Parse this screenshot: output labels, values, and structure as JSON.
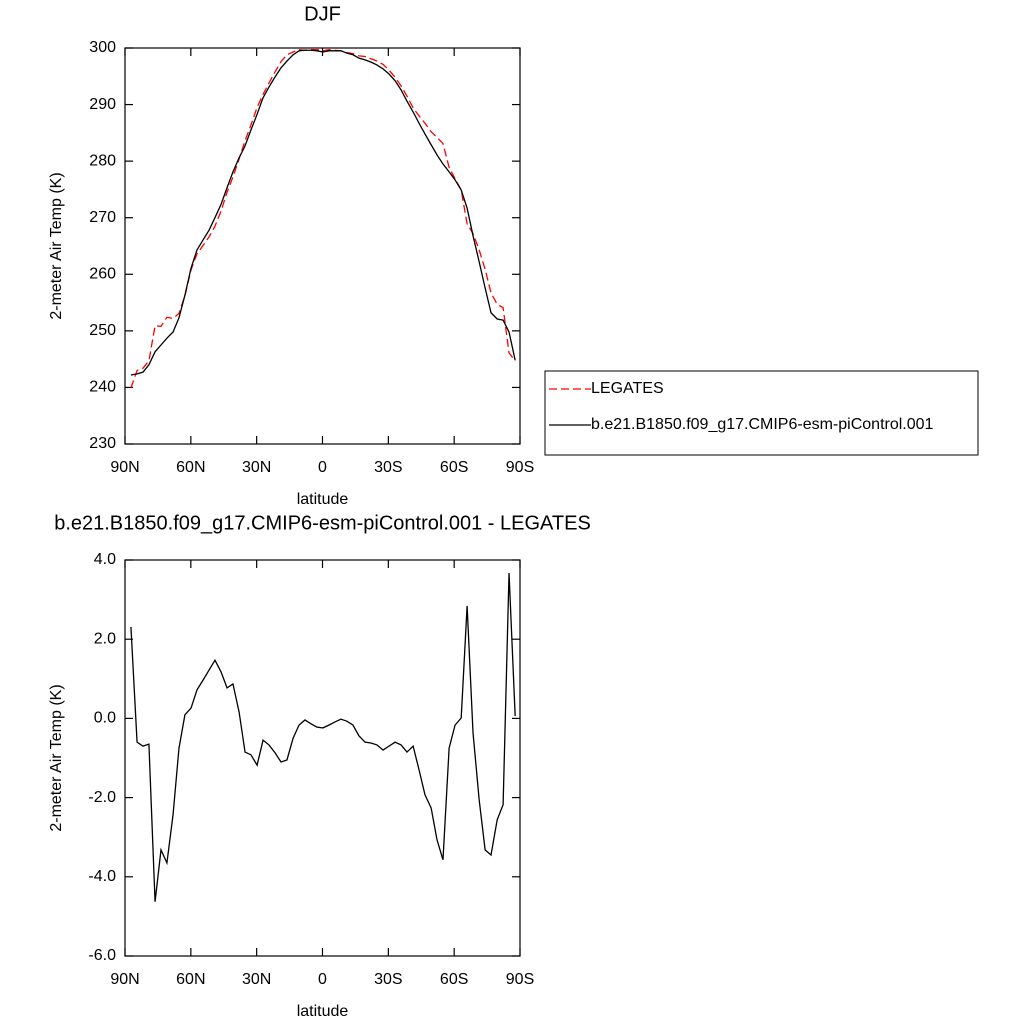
{
  "chart_data": [
    {
      "type": "line",
      "title": "DJF",
      "x_label": "latitude",
      "y_label": "2-meter Air Temp (K)",
      "x": [
        87.3,
        84.5,
        81.8,
        79.1,
        76.3,
        73.6,
        70.9,
        68.1,
        65.4,
        62.7,
        59.9,
        57.2,
        54.4,
        51.7,
        49.0,
        46.2,
        43.5,
        40.8,
        38.0,
        35.3,
        32.6,
        29.8,
        27.1,
        24.4,
        21.6,
        18.9,
        16.2,
        13.4,
        10.7,
        8.0,
        5.2,
        2.5,
        -0.2,
        -2.9,
        -5.7,
        -8.4,
        -11.1,
        -13.9,
        -16.6,
        -19.4,
        -22.1,
        -24.8,
        -27.6,
        -30.3,
        -33.1,
        -35.8,
        -38.5,
        -41.3,
        -44.0,
        -46.7,
        -49.5,
        -52.2,
        -54.9,
        -57.7,
        -60.4,
        -63.2,
        -65.9,
        -68.6,
        -71.4,
        -74.1,
        -76.8,
        -79.6,
        -82.3,
        -85.0,
        -87.8
      ],
      "series": [
        {
          "name": "LEGATES",
          "color": "#ff0000",
          "linestyle": "dashed",
          "values": [
            239.9,
            243.0,
            243.4,
            244.7,
            250.9,
            250.8,
            252.4,
            252.2,
            253.1,
            256.2,
            260.8,
            263.6,
            265.1,
            266.6,
            268.5,
            271.2,
            274.5,
            277.2,
            280.4,
            283.6,
            286.4,
            289.5,
            291.8,
            293.8,
            295.8,
            297.6,
            298.8,
            299.3,
            299.7,
            299.6,
            299.7,
            299.7,
            299.5,
            299.7,
            299.6,
            299.5,
            299.2,
            299.0,
            298.6,
            298.5,
            298.1,
            297.7,
            297.1,
            296.1,
            294.8,
            293.3,
            291.5,
            289.4,
            288.0,
            286.7,
            285.2,
            284.2,
            283.1,
            278.9,
            276.9,
            274.9,
            268.9,
            267.2,
            264.3,
            260.9,
            256.7,
            254.7,
            254.1,
            246.1,
            244.7
          ]
        },
        {
          "name": "b.e21.B1850.f09_g17.CMIP6-esm-piControl.001",
          "color": "#000000",
          "linestyle": "solid",
          "values": [
            242.2,
            242.4,
            242.7,
            244.0,
            246.3,
            247.5,
            248.7,
            249.8,
            252.3,
            256.3,
            261.1,
            264.3,
            266.1,
            267.8,
            270.0,
            272.4,
            275.3,
            278.1,
            280.6,
            282.7,
            285.5,
            288.3,
            291.2,
            293.1,
            294.9,
            296.5,
            297.7,
            298.8,
            299.5,
            299.6,
            299.6,
            299.5,
            299.3,
            299.5,
            299.5,
            299.5,
            299.1,
            298.8,
            298.2,
            297.9,
            297.5,
            297.0,
            296.3,
            295.4,
            294.2,
            292.6,
            290.6,
            288.7,
            286.7,
            284.8,
            282.9,
            281.1,
            279.5,
            278.1,
            276.7,
            274.9,
            271.7,
            266.8,
            262.2,
            257.6,
            253.2,
            252.1,
            251.9,
            249.8,
            244.8
          ]
        }
      ],
      "xlim": [
        90,
        -90
      ],
      "xticks": [
        {
          "value": 90,
          "label": "90N"
        },
        {
          "value": 60,
          "label": "60N"
        },
        {
          "value": 30,
          "label": "30N"
        },
        0,
        {
          "value": -30,
          "label": "30S"
        },
        {
          "value": -60,
          "label": "60S"
        },
        {
          "value": -90,
          "label": "90S"
        }
      ],
      "ylim": [
        230,
        300
      ],
      "yticks": [
        230,
        240,
        250,
        260,
        270,
        280,
        290,
        300
      ],
      "legend": "right"
    },
    {
      "type": "line",
      "title": "b.e21.B1850.f09_g17.CMIP6-esm-piControl.001 - LEGATES",
      "x_label": "latitude",
      "y_label": "2-meter Air Temp (K)",
      "x": [
        87.3,
        84.5,
        81.8,
        79.1,
        76.3,
        73.6,
        70.9,
        68.1,
        65.4,
        62.7,
        59.9,
        57.2,
        54.4,
        51.7,
        49.0,
        46.2,
        43.5,
        40.8,
        38.0,
        35.3,
        32.6,
        29.8,
        27.1,
        24.4,
        21.6,
        18.9,
        16.2,
        13.4,
        10.7,
        8.0,
        5.2,
        2.5,
        -0.2,
        -2.9,
        -5.7,
        -8.4,
        -11.1,
        -13.9,
        -16.6,
        -19.4,
        -22.1,
        -24.8,
        -27.6,
        -30.3,
        -33.1,
        -35.8,
        -38.5,
        -41.3,
        -44.0,
        -46.7,
        -49.5,
        -52.2,
        -54.9,
        -57.7,
        -60.4,
        -63.2,
        -65.9,
        -68.6,
        -71.4,
        -74.1,
        -76.8,
        -79.6,
        -82.3,
        -85.0,
        -87.8
      ],
      "color": "#000000",
      "values": [
        2.31,
        -0.6,
        -0.7,
        -0.65,
        -4.63,
        -3.32,
        -3.65,
        -2.43,
        -0.75,
        0.09,
        0.26,
        0.72,
        0.97,
        1.22,
        1.47,
        1.17,
        0.77,
        0.87,
        0.16,
        -0.85,
        -0.92,
        -1.18,
        -0.55,
        -0.67,
        -0.87,
        -1.1,
        -1.05,
        -0.5,
        -0.17,
        -0.04,
        -0.14,
        -0.22,
        -0.24,
        -0.17,
        -0.09,
        -0.02,
        -0.07,
        -0.17,
        -0.44,
        -0.6,
        -0.62,
        -0.67,
        -0.8,
        -0.7,
        -0.6,
        -0.67,
        -0.85,
        -0.7,
        -1.3,
        -1.93,
        -2.26,
        -3.07,
        -3.57,
        -0.75,
        -0.17,
        0.01,
        2.84,
        -0.37,
        -2.06,
        -3.32,
        -3.45,
        -2.56,
        -2.18,
        3.67,
        0.06
      ],
      "xlim": [
        90,
        -90
      ],
      "xticks": [
        {
          "value": 90,
          "label": "90N"
        },
        {
          "value": 60,
          "label": "60N"
        },
        {
          "value": 30,
          "label": "30N"
        },
        0,
        {
          "value": -30,
          "label": "30S"
        },
        {
          "value": -60,
          "label": "60S"
        },
        {
          "value": -90,
          "label": "90S"
        }
      ],
      "ylim": [
        -6,
        4
      ],
      "yticks": [
        {
          "value": -6,
          "label": "-6.0"
        },
        {
          "value": -4,
          "label": "-4.0"
        },
        {
          "value": -2,
          "label": "-2.0"
        },
        {
          "value": 0,
          "label": "0.0"
        },
        {
          "value": 2,
          "label": "2.0"
        },
        {
          "value": 4,
          "label": "4.0"
        }
      ]
    }
  ]
}
